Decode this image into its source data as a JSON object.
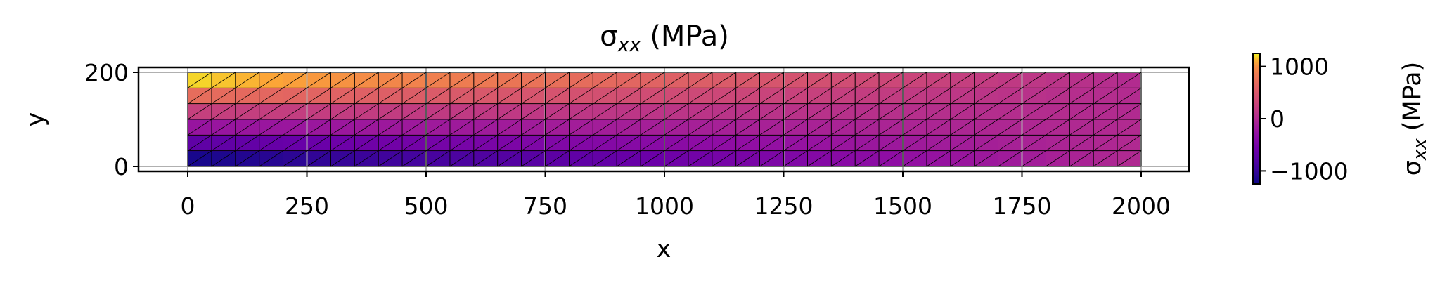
{
  "chart_data": {
    "type": "heatmap",
    "plot_kind": "triangulated mesh contour (tripcolor)",
    "title": {
      "base": "σ",
      "sub": "xx",
      "rest": " (MPa)"
    },
    "xlabel": "x",
    "ylabel": "y",
    "xlim": [
      -100,
      2100
    ],
    "ylim": [
      -10,
      210
    ],
    "grid": true,
    "x_ticks": [
      0,
      250,
      500,
      750,
      1000,
      1250,
      1500,
      1750,
      2000
    ],
    "x_tick_labels": [
      "0",
      "250",
      "500",
      "750",
      "1000",
      "1250",
      "1500",
      "1750",
      "2000"
    ],
    "y_ticks": [
      0,
      200
    ],
    "y_tick_labels": [
      "0",
      "200"
    ],
    "mesh": {
      "x_range": [
        0,
        2000
      ],
      "y_range": [
        0,
        200
      ],
      "nx": 40,
      "ny": 6,
      "diagonal": "lower-left to upper-right"
    },
    "stress_field": {
      "description": "linear bending stress, varies with y and decreases in magnitude along x",
      "values_by_row_at_x0": [
        -1200,
        -720,
        -240,
        240,
        720,
        1200
      ],
      "values_by_row_at_x2000": [
        0,
        0,
        0,
        0,
        0,
        0
      ]
    },
    "colorbar": {
      "colormap": "plasma",
      "range": [
        -1250,
        1250
      ],
      "ticks": [
        1000,
        0,
        -1000
      ],
      "tick_labels": [
        "1000",
        "0",
        "−1000"
      ],
      "label": {
        "base": "σ",
        "sub": "xx",
        "rest": " (MPa)"
      },
      "placement": "right"
    },
    "colors": {
      "mesh_edge": "#000000",
      "grid": "#b0b0b0",
      "axes": "#000000"
    }
  }
}
